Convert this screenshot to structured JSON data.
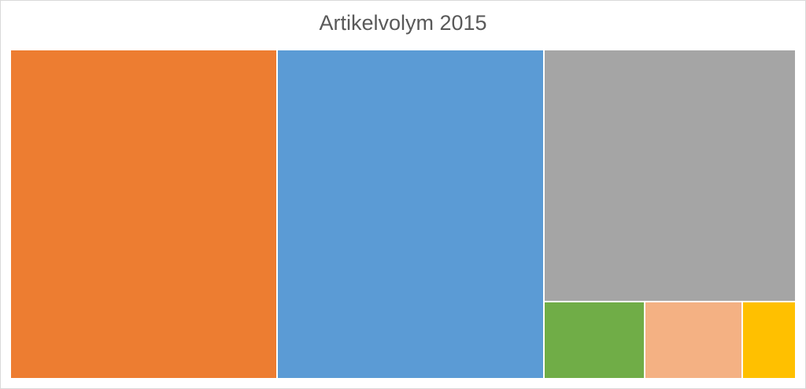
{
  "chart_data": {
    "type": "treemap",
    "title": "Artikelvolym 2015",
    "items": [
      {
        "color": "#ED7D31",
        "value": 34.0
      },
      {
        "color": "#5B9BD5",
        "value": 34.0
      },
      {
        "color": "#A5A5A5",
        "value": 24.6
      },
      {
        "color": "#70AD47",
        "value": 3.0
      },
      {
        "color": "#F4B183",
        "value": 2.9
      },
      {
        "color": "#FFC000",
        "value": 1.6
      }
    ]
  }
}
